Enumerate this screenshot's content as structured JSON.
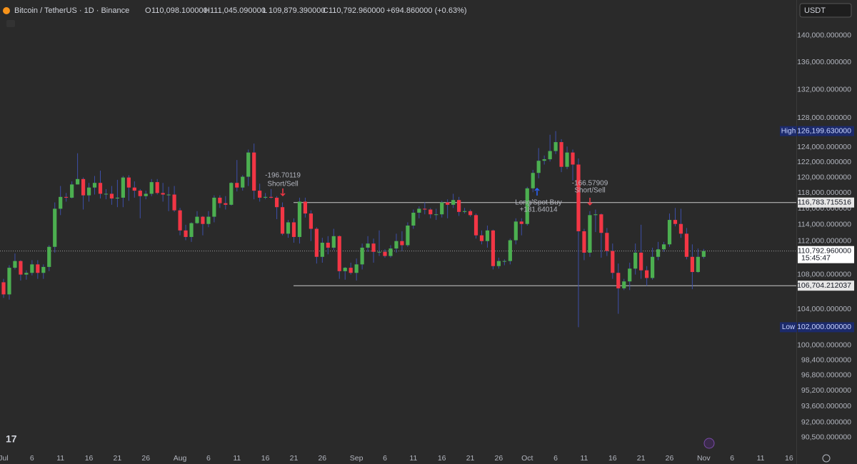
{
  "chart_data": {
    "type": "candlestick",
    "title": "Bitcoin / TetherUS · 1D · Binance",
    "legend_ohlc": [
      [
        "O",
        "110,098.100000"
      ],
      [
        "H",
        "111,045.090000"
      ],
      [
        "L",
        "109,879.390000"
      ],
      [
        "C",
        "110,792.960000"
      ]
    ],
    "change": "+694.860000 (+0.63%)",
    "currency": "USDT",
    "log_scale": true,
    "up_color": "#4caf50",
    "down_color": "#f23645",
    "wick_color": "#3d4fa8",
    "ylim": [
      89300,
      145500
    ],
    "yticks": [
      {
        "value": 140000,
        "label": "140,000.000000"
      },
      {
        "value": 136000,
        "label": "136,000.000000"
      },
      {
        "value": 132000,
        "label": "132,000.000000"
      },
      {
        "value": 128000,
        "label": "128,000.000000"
      },
      {
        "value": 124000,
        "label": "124,000.000000"
      },
      {
        "value": 122000,
        "label": "122,000.000000"
      },
      {
        "value": 120000,
        "label": "120,000.000000"
      },
      {
        "value": 118000,
        "label": "118,000.000000"
      },
      {
        "value": 116000,
        "label": "116,000.000000"
      },
      {
        "value": 114000,
        "label": "114,000.000000"
      },
      {
        "value": 112000,
        "label": "112,000.000000"
      },
      {
        "value": 108000,
        "label": "108,000.000000"
      },
      {
        "value": 104000,
        "label": "104,000.000000"
      },
      {
        "value": 100000,
        "label": "100,000.000000"
      },
      {
        "value": 98400,
        "label": "98,400.000000"
      },
      {
        "value": 96800,
        "label": "96,800.000000"
      },
      {
        "value": 95200,
        "label": "95,200.000000"
      },
      {
        "value": 93600,
        "label": "93,600.000000"
      },
      {
        "value": 92000,
        "label": "92,000.000000"
      },
      {
        "value": 90500,
        "label": "90,500.000000"
      }
    ],
    "xlim": [
      -0.627,
      139.27
    ],
    "xticks": [
      {
        "value": 0,
        "label": "Jul"
      },
      {
        "value": 5,
        "label": "6"
      },
      {
        "value": 10,
        "label": "11"
      },
      {
        "value": 15,
        "label": "16"
      },
      {
        "value": 20,
        "label": "21"
      },
      {
        "value": 25,
        "label": "26"
      },
      {
        "value": 31,
        "label": "Aug"
      },
      {
        "value": 36,
        "label": "6"
      },
      {
        "value": 41,
        "label": "11"
      },
      {
        "value": 46,
        "label": "16"
      },
      {
        "value": 51,
        "label": "21"
      },
      {
        "value": 56,
        "label": "26"
      },
      {
        "value": 62,
        "label": "Sep"
      },
      {
        "value": 67,
        "label": "6"
      },
      {
        "value": 72,
        "label": "11"
      },
      {
        "value": 77,
        "label": "16"
      },
      {
        "value": 82,
        "label": "21"
      },
      {
        "value": 87,
        "label": "26"
      },
      {
        "value": 92,
        "label": "Oct"
      },
      {
        "value": 97,
        "label": "6"
      },
      {
        "value": 102,
        "label": "11"
      },
      {
        "value": 107,
        "label": "16"
      },
      {
        "value": 112,
        "label": "21"
      },
      {
        "value": 117,
        "label": "26"
      },
      {
        "value": 123,
        "label": "Nov"
      },
      {
        "value": 128,
        "label": "6"
      },
      {
        "value": 133,
        "label": "11"
      },
      {
        "value": 138,
        "label": "16"
      }
    ],
    "open": [
      107100,
      105700,
      108800,
      109600,
      108000,
      108200,
      109200,
      108200,
      108900,
      111300,
      116000,
      117500,
      117400,
      119100,
      119800,
      117700,
      118700,
      119300,
      117900,
      117900,
      117300,
      117400,
      120000,
      118700,
      118300,
      117600,
      117900,
      119400,
      118000,
      117800,
      117800,
      115800,
      113300,
      112500,
      114200,
      115000,
      114100,
      115000,
      117400,
      116700,
      116500,
      119300,
      118700,
      120100,
      123300,
      118300,
      117400,
      117500,
      117400,
      116200,
      112900,
      114300,
      112500,
      116900,
      115400,
      113500,
      110100,
      111800,
      111200,
      112600,
      108400,
      108800,
      108200,
      109200,
      111200,
      111700,
      110700,
      110700,
      110200,
      111100,
      112000,
      111500,
      113900,
      115500,
      116000,
      115900,
      115300,
      115300,
      116800,
      116500,
      117100,
      115600,
      115700,
      115200,
      112700,
      112000,
      113300,
      109000,
      109600,
      109600,
      112100,
      114400,
      114100,
      118600,
      120600,
      122200,
      122400,
      123500,
      124700,
      121400,
      123300,
      121700,
      113200,
      110600,
      115200,
      115300,
      113000,
      110800,
      108200,
      106400,
      107200,
      108700,
      110600,
      108500,
      107600,
      110100,
      111000,
      111600,
      114600,
      114100,
      112900,
      110100,
      108300,
      110098.1
    ],
    "high": [
      107500,
      109100,
      110500,
      109700,
      108500,
      109700,
      109700,
      109200,
      111500,
      116800,
      118900,
      118000,
      119500,
      123200,
      120000,
      119300,
      120200,
      120900,
      118500,
      118900,
      119700,
      120200,
      120300,
      119500,
      118500,
      118300,
      119800,
      119800,
      119300,
      118800,
      118900,
      116100,
      114000,
      114300,
      115700,
      115100,
      115700,
      117700,
      117700,
      117600,
      119400,
      122300,
      120300,
      123700,
      124500,
      119200,
      118000,
      118500,
      117600,
      116800,
      114600,
      114800,
      117400,
      117400,
      115800,
      113700,
      112400,
      112600,
      113500,
      112700,
      108900,
      109400,
      109900,
      111700,
      112600,
      112300,
      113300,
      111000,
      111500,
      112900,
      113200,
      114300,
      115900,
      116300,
      116800,
      116100,
      116000,
      117000,
      117200,
      117900,
      117500,
      116100,
      115900,
      115400,
      113300,
      113900,
      113400,
      110000,
      109800,
      112300,
      114800,
      114800,
      118800,
      121000,
      123900,
      122900,
      125700,
      126199.63,
      125100,
      124100,
      123700,
      122500,
      113500,
      115700,
      115900,
      115400,
      113600,
      111700,
      109300,
      107500,
      109400,
      111700,
      114000,
      109000,
      111200,
      111900,
      111900,
      115400,
      116100,
      116000,
      113600,
      111600,
      111100,
      111045.09
    ],
    "low": [
      105300,
      105100,
      108600,
      107300,
      107400,
      107900,
      107500,
      107500,
      108400,
      110600,
      115200,
      116900,
      117300,
      119100,
      115900,
      116900,
      117800,
      117300,
      117200,
      116500,
      116200,
      116200,
      117000,
      117400,
      114800,
      117200,
      117600,
      117800,
      116900,
      115700,
      115600,
      112700,
      112100,
      111900,
      114100,
      112700,
      113700,
      114300,
      116100,
      115900,
      116400,
      118200,
      118300,
      118900,
      117200,
      116900,
      117200,
      117300,
      114700,
      112700,
      112400,
      111800,
      111700,
      114900,
      112000,
      109300,
      109400,
      110400,
      110900,
      107500,
      107400,
      108000,
      107300,
      108600,
      110700,
      109400,
      110200,
      110000,
      110000,
      110600,
      110800,
      111300,
      113500,
      114800,
      115300,
      114800,
      114600,
      114900,
      114800,
      116100,
      115100,
      115400,
      115000,
      112300,
      111600,
      111200,
      108600,
      108700,
      109100,
      109200,
      111600,
      112700,
      113900,
      118100,
      119900,
      121700,
      122100,
      123100,
      120700,
      121100,
      119600,
      102000,
      109700,
      110100,
      113100,
      110000,
      110200,
      107500,
      103500,
      106200,
      106200,
      108000,
      107500,
      106700,
      107400,
      109700,
      110700,
      111300,
      113800,
      112400,
      109800,
      106300,
      108200,
      109879.39
    ],
    "close": [
      105700,
      108800,
      109600,
      108000,
      108200,
      109200,
      108200,
      108900,
      111300,
      116000,
      117500,
      117400,
      119100,
      119800,
      117700,
      118700,
      119300,
      117900,
      117900,
      117300,
      117400,
      120000,
      118700,
      118300,
      117600,
      117900,
      119400,
      118000,
      117800,
      117800,
      115800,
      113300,
      112500,
      114200,
      115000,
      114100,
      115000,
      117400,
      116700,
      116500,
      119300,
      118700,
      120100,
      123300,
      118300,
      117400,
      117500,
      117400,
      116200,
      112900,
      114300,
      112500,
      116900,
      115400,
      113500,
      110100,
      111800,
      111200,
      112600,
      108400,
      108800,
      108200,
      109200,
      111200,
      111700,
      110700,
      110700,
      110200,
      111100,
      112000,
      111500,
      113900,
      115500,
      116000,
      115900,
      115300,
      115300,
      116800,
      116500,
      117100,
      115600,
      115700,
      115200,
      112700,
      112000,
      113300,
      109000,
      109600,
      109600,
      112100,
      114400,
      114100,
      118600,
      120600,
      122200,
      122400,
      123500,
      124700,
      121400,
      123300,
      121700,
      113200,
      110600,
      115200,
      115300,
      113000,
      110800,
      108200,
      106400,
      107200,
      108700,
      110600,
      108500,
      107600,
      110100,
      111000,
      111600,
      114600,
      114100,
      112900,
      110100,
      108300,
      110100,
      110792.96
    ],
    "levels": [
      {
        "value": 116783.715516,
        "label": "116,783.715516"
      },
      {
        "value": 106704.212037,
        "label": "106,704.212037"
      }
    ],
    "last_price": {
      "value": 110792.96,
      "label": "110,792.960000",
      "countdown": "15:45:47"
    },
    "high_marker": {
      "label": "High",
      "value": 126199.63,
      "value_label": "126,199.630000"
    },
    "low_marker": {
      "label": "Low",
      "value": 102000,
      "value_label": "102,000.000000"
    },
    "annotations": [
      {
        "value": "-196.70119",
        "action": "Short/Sell"
      },
      {
        "action": "Long/Spot Buy",
        "value": "+181.64014"
      },
      {
        "value": "-166.57909",
        "action": "Short/Sell"
      }
    ]
  }
}
